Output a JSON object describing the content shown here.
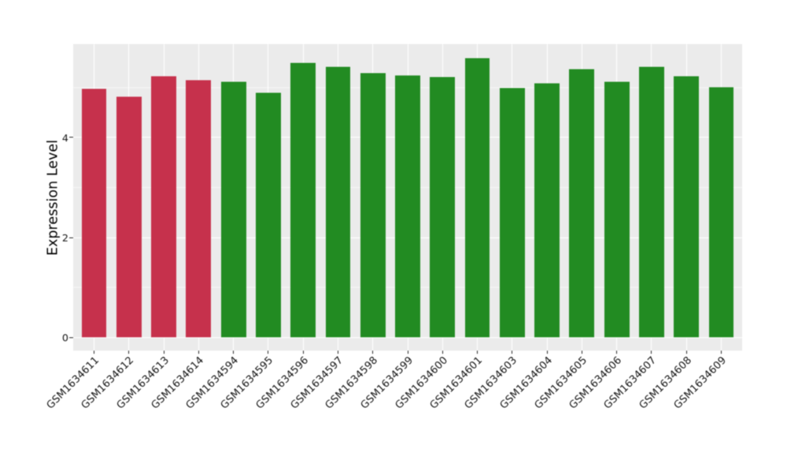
{
  "chart_data": {
    "type": "bar",
    "title": "",
    "xlabel": "",
    "ylabel": "Expression Level",
    "categories": [
      "GSM1634611",
      "GSM1634612",
      "GSM1634613",
      "GSM1634614",
      "GSM1634594",
      "GSM1634595",
      "GSM1634596",
      "GSM1634597",
      "GSM1634598",
      "GSM1634599",
      "GSM1634600",
      "GSM1634601",
      "GSM1634603",
      "GSM1634604",
      "GSM1634605",
      "GSM1634606",
      "GSM1634607",
      "GSM1634608",
      "GSM1634609"
    ],
    "values": [
      4.96,
      4.81,
      5.22,
      5.14,
      5.11,
      4.89,
      5.49,
      5.4,
      5.28,
      5.23,
      5.2,
      5.58,
      4.98,
      5.07,
      5.36,
      5.11,
      5.41,
      5.21,
      5.0
    ],
    "bar_colors": [
      "#C6314C",
      "#C6314C",
      "#C6314C",
      "#C6314C",
      "#228B22",
      "#228B22",
      "#228B22",
      "#228B22",
      "#228B22",
      "#228B22",
      "#228B22",
      "#228B22",
      "#228B22",
      "#228B22",
      "#228B22",
      "#228B22",
      "#228B22",
      "#228B22",
      "#228B22"
    ],
    "group_colors": {
      "red": "#C6314C",
      "green": "#228B22"
    },
    "yticks": [
      0,
      2,
      4
    ],
    "yticks_minor": [
      1,
      3,
      5
    ],
    "ylim": [
      -0.264,
      5.86
    ],
    "grid": true,
    "legend": false,
    "panel_background": "#EBEBEB",
    "grid_color": "#FFFFFF"
  }
}
